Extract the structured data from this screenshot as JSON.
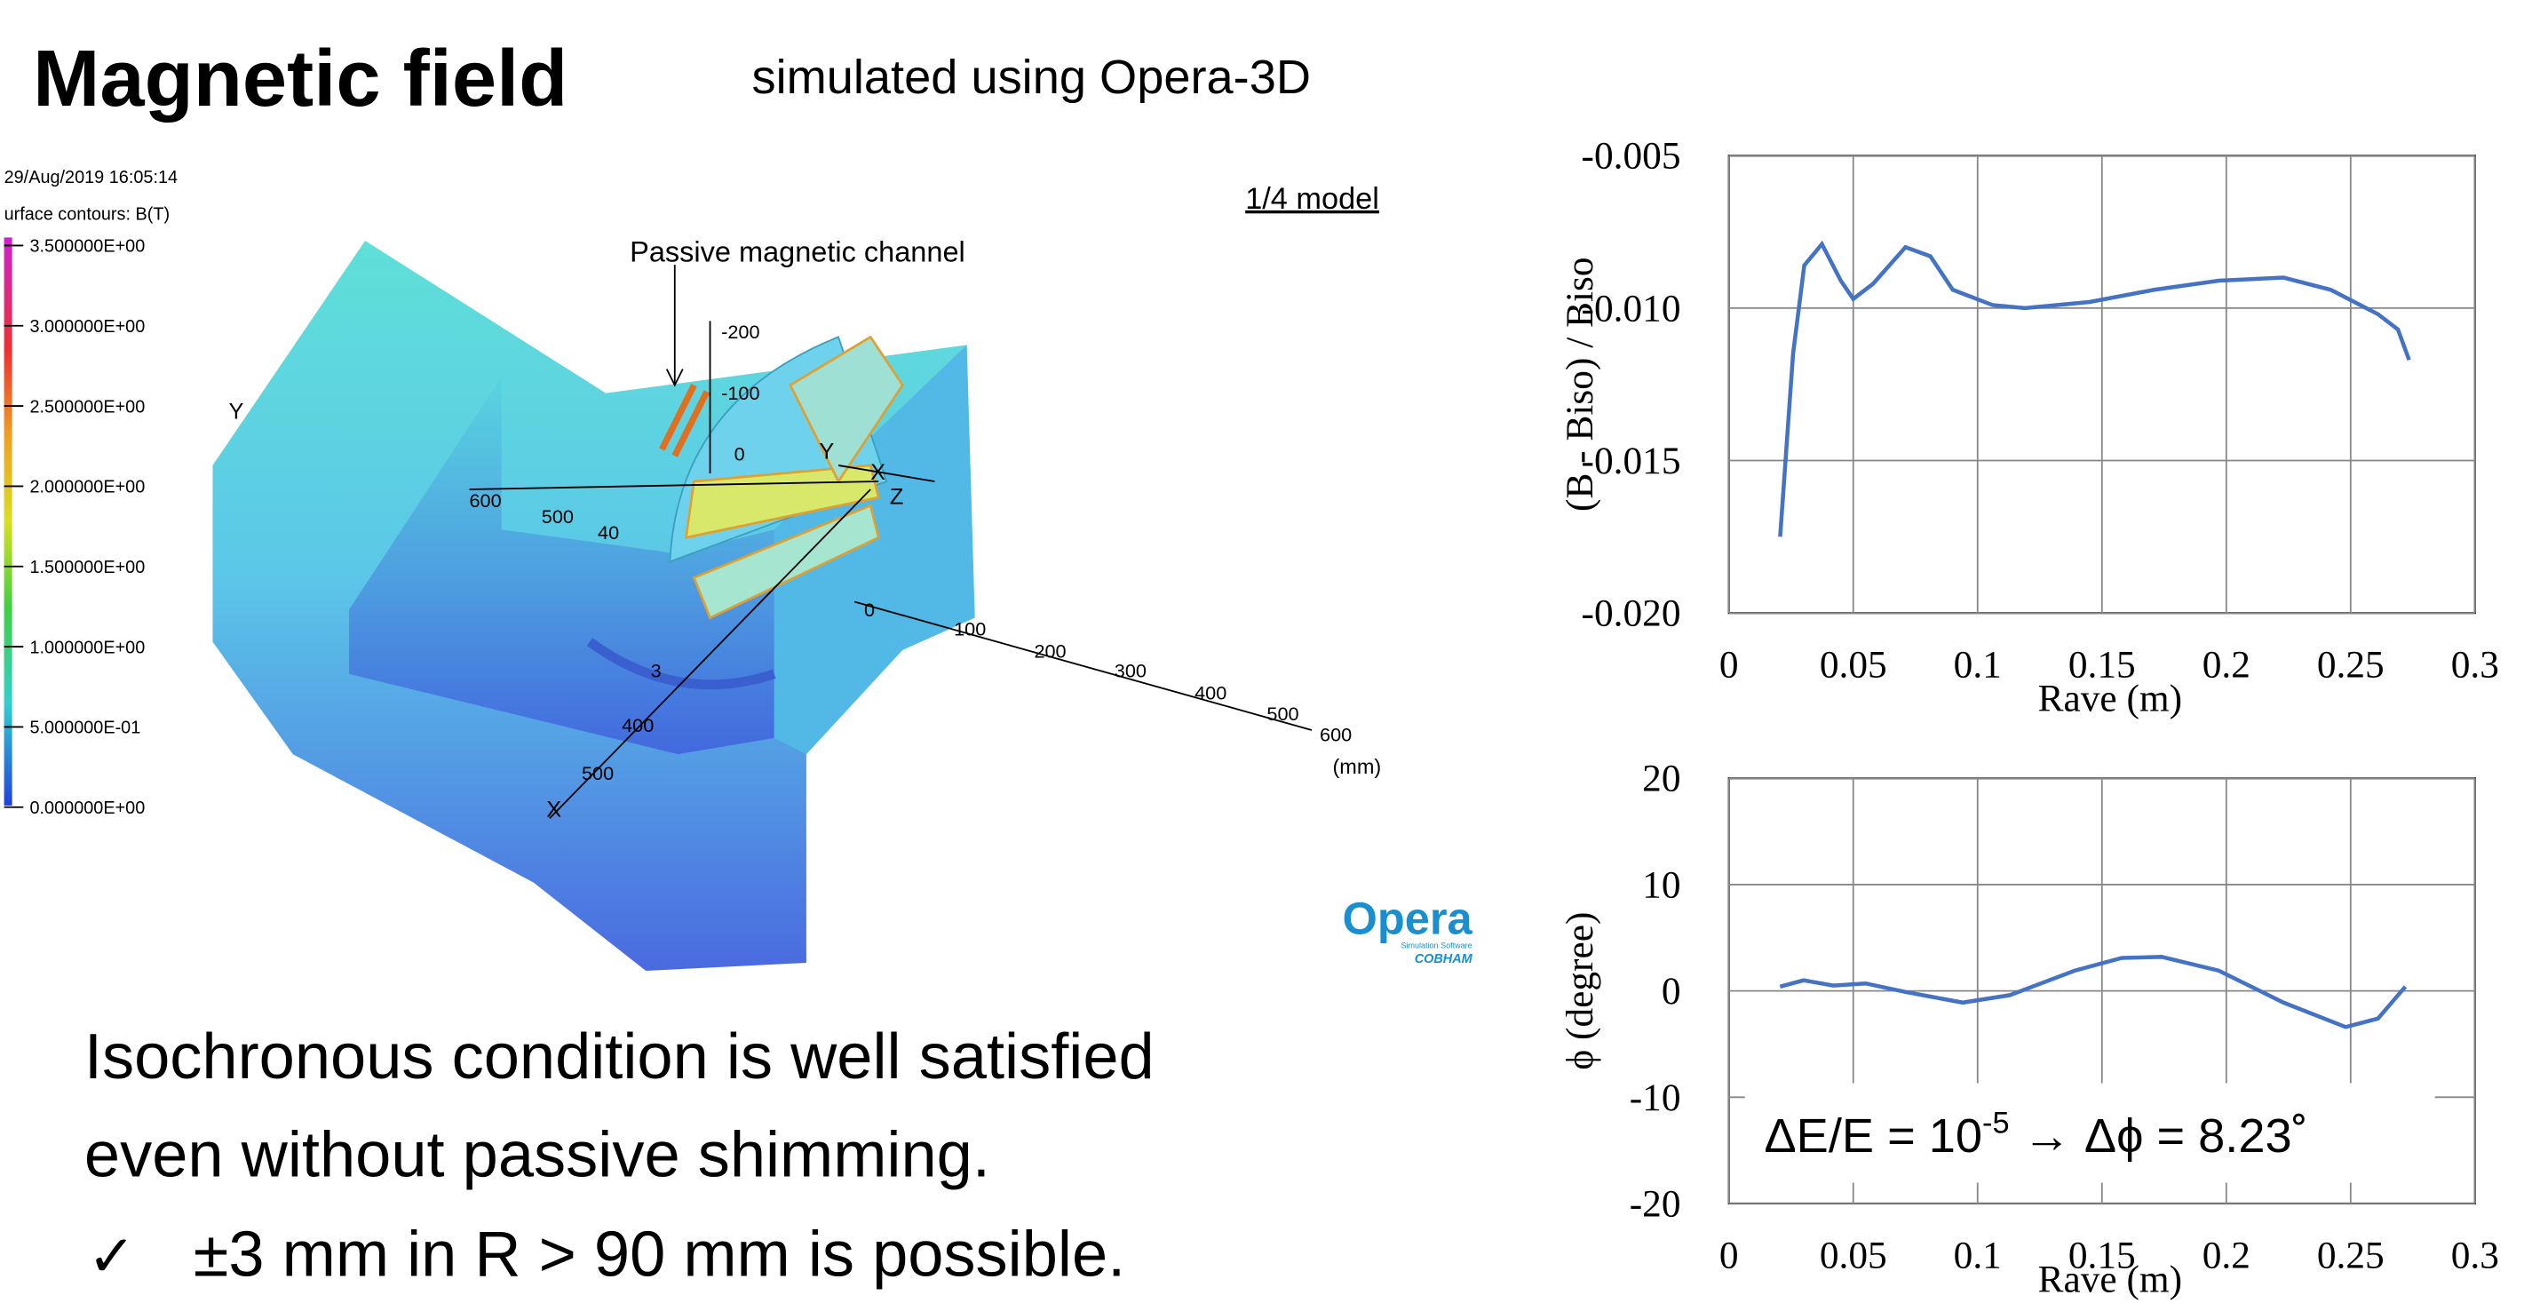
{
  "title": "Magnetic field",
  "subtitle": "simulated using Opera-3D",
  "body_lines": [
    "Isochronous condition is well satisfied",
    "even without passive shimming."
  ],
  "bullet_mark": "✓",
  "bullet_text": "±3 mm in R > 90 mm is possible.",
  "render": {
    "timestamp": "29/Aug/2019 16:05:14",
    "legend_title": "urface contours: B(T)",
    "legend_labels": [
      "3.500000E+00",
      "3.000000E+00",
      "2.500000E+00",
      "2.000000E+00",
      "1.500000E+00",
      "1.000000E+00",
      "5.000000E-01",
      "0.000000E+00"
    ],
    "model_note": "1/4 model",
    "callout": "Passive magnetic channel",
    "vertical_axis_ticks": [
      "-200",
      "-100",
      "0"
    ],
    "left_axis_ticks": [
      "600",
      "500",
      "40"
    ],
    "right_axis_ticks": [
      "0",
      "100",
      "200",
      "300",
      "400",
      "500",
      "600"
    ],
    "depth_axis_ticks": [
      "3",
      "400",
      "500"
    ],
    "axis_letters": [
      "Y",
      "Y",
      "X",
      "Z",
      "X"
    ],
    "unit": "(mm)",
    "logo": {
      "name": "Opera",
      "tagline": "Simulation Software",
      "company": "COBHAM"
    }
  },
  "chart_data": [
    {
      "type": "line",
      "ylabel": "(B - Biso) / Biso",
      "xlabel": "Rave (m)",
      "x": [
        0.0206,
        0.0258,
        0.0303,
        0.0374,
        0.045,
        0.05,
        0.058,
        0.071,
        0.081,
        0.09,
        0.106,
        0.119,
        0.145,
        0.171,
        0.197,
        0.223,
        0.242,
        0.261,
        0.269,
        0.2735
      ],
      "series": [
        {
          "color": "#4472c4",
          "values": [
            -0.0175,
            -0.0115,
            -0.0086,
            -0.0079,
            -0.0091,
            -0.0097,
            -0.0092,
            -0.008,
            -0.0083,
            -0.0094,
            -0.0099,
            -0.01,
            -0.0098,
            -0.0094,
            -0.0091,
            -0.009,
            -0.0094,
            -0.0102,
            -0.0107,
            -0.0117
          ]
        }
      ],
      "xlim": [
        0,
        0.3
      ],
      "xticks": [
        0,
        0.05,
        0.1,
        0.15,
        0.2,
        0.25,
        0.3
      ],
      "ylim": [
        -0.02,
        -0.005
      ],
      "yticks": [
        -0.005,
        {
          "value": -0.01,
          "label": "-0.010"
        },
        -0.015,
        {
          "value": -0.02,
          "label": "-0.020"
        }
      ],
      "grid": true
    },
    {
      "type": "line",
      "ylabel": "ϕ (degree)",
      "xlabel": "Rave (m)",
      "x": [
        0.0206,
        0.03,
        0.042,
        0.055,
        0.071,
        0.094,
        0.113,
        0.139,
        0.158,
        0.174,
        0.197,
        0.223,
        0.248,
        0.261,
        0.272
      ],
      "series": [
        {
          "color": "#4472c4",
          "values": [
            0.4,
            1.0,
            0.5,
            0.7,
            -0.1,
            -1.1,
            -0.4,
            1.9,
            3.1,
            3.2,
            1.9,
            -1.1,
            -3.4,
            -2.6,
            0.4
          ]
        }
      ],
      "xlim": [
        0,
        0.3
      ],
      "xticks": [
        0,
        0.05,
        0.1,
        0.15,
        0.2,
        0.25,
        0.3
      ],
      "ylim": [
        -20,
        20
      ],
      "yticks": [
        20,
        10,
        0,
        -10,
        -20
      ],
      "grid": true,
      "annotation": {
        "prefix": "ΔE/E = 10",
        "sup": "-5",
        "suffix": " → Δϕ = 8.23˚"
      }
    }
  ]
}
